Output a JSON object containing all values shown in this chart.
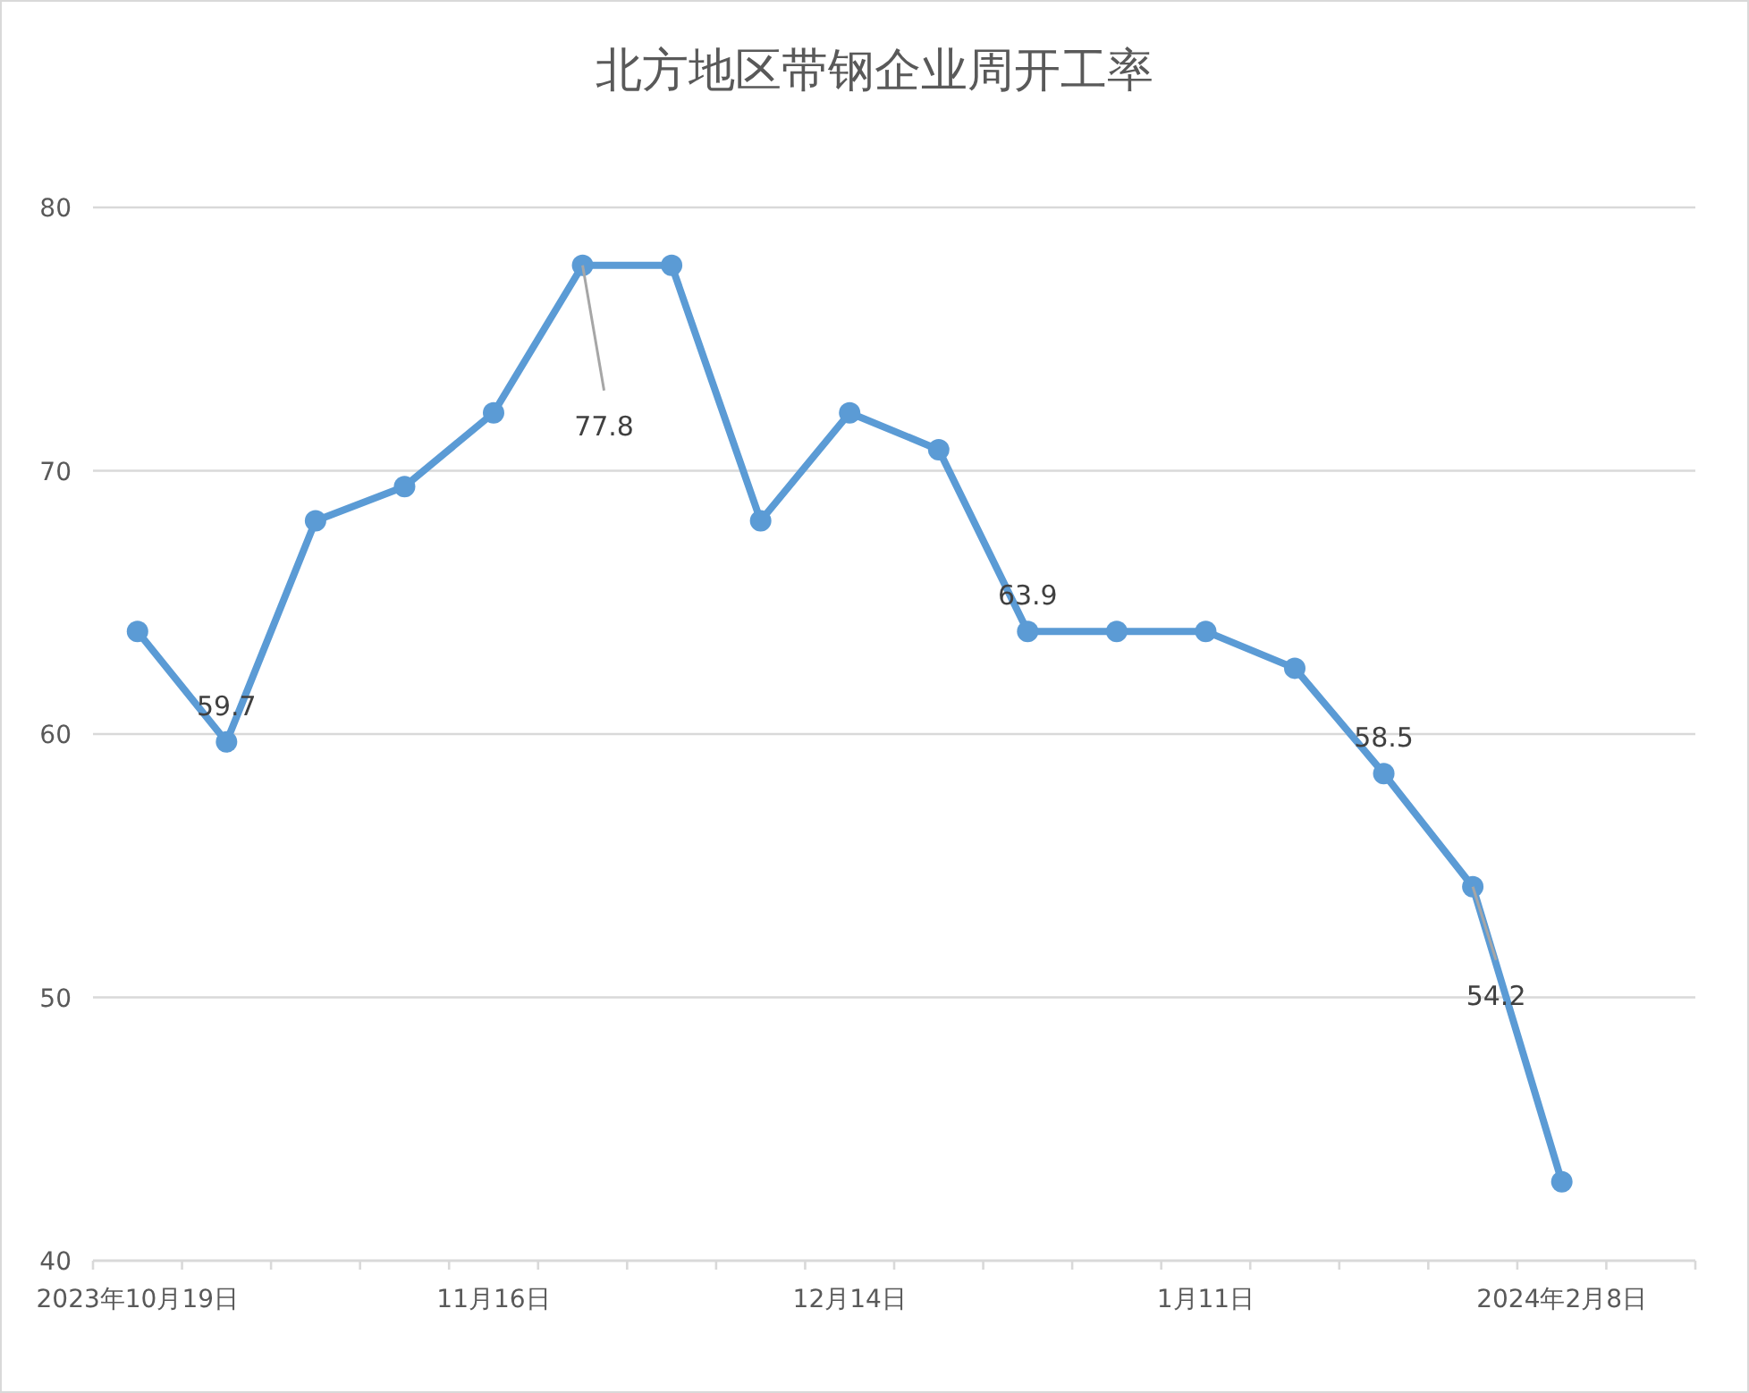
{
  "chart_data": {
    "type": "line",
    "title": "北方地区带钢企业周开工率",
    "categories": [
      "2023年10月19日",
      null,
      null,
      null,
      "11月16日",
      null,
      null,
      null,
      "12月14日",
      null,
      null,
      null,
      "1月11日",
      null,
      null,
      null,
      "2024年2月8日",
      null
    ],
    "series": [
      {
        "color": "#5b9bd5",
        "values": [
          63.9,
          59.7,
          68.1,
          69.4,
          72.2,
          77.8,
          77.8,
          68.1,
          72.2,
          70.8,
          63.9,
          63.9,
          63.9,
          62.5,
          58.5,
          54.2,
          43.0,
          null
        ],
        "value_labels": [
          null,
          "59.7",
          null,
          null,
          null,
          "77.8",
          null,
          null,
          null,
          null,
          "63.9",
          null,
          null,
          null,
          "58.5",
          "54.2",
          null,
          null
        ]
      }
    ],
    "ylim": [
      40,
      80
    ],
    "yticks": [
      40,
      50,
      60,
      70,
      80
    ],
    "grid": "y",
    "marker": "circle",
    "line_style": "solid"
  }
}
